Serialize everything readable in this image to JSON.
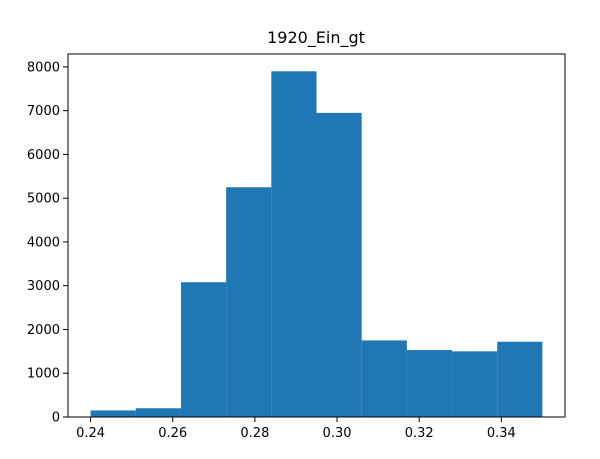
{
  "chart_data": {
    "type": "bar",
    "title": "1920_Ein_gt",
    "xlabel": "",
    "ylabel": "",
    "bin_edges": [
      0.24,
      0.251,
      0.262,
      0.273,
      0.284,
      0.295,
      0.306,
      0.317,
      0.328,
      0.339,
      0.35
    ],
    "values": [
      150,
      200,
      3080,
      5250,
      7900,
      6950,
      1750,
      1530,
      1500,
      1720
    ],
    "xlim": [
      0.2345,
      0.3555
    ],
    "ylim": [
      0,
      8295
    ],
    "x_ticks": [
      0.24,
      0.26,
      0.28,
      0.3,
      0.32,
      0.34
    ],
    "x_tick_labels": [
      "0.24",
      "0.26",
      "0.28",
      "0.30",
      "0.32",
      "0.34"
    ],
    "y_ticks": [
      0,
      1000,
      2000,
      3000,
      4000,
      5000,
      6000,
      7000,
      8000
    ],
    "y_tick_labels": [
      "0",
      "1000",
      "2000",
      "3000",
      "4000",
      "5000",
      "6000",
      "7000",
      "8000"
    ],
    "bar_color": "#1f77b4",
    "grid": false,
    "legend": "none"
  }
}
